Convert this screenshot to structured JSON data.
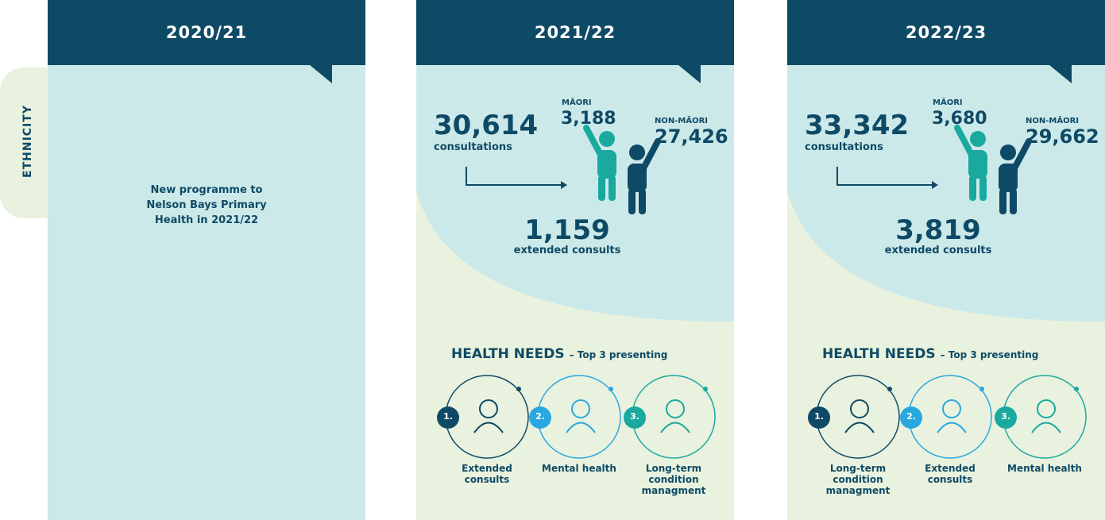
{
  "side_label": "ETHNICITY",
  "columns": [
    {
      "year": "2020/21",
      "note": "New programme to Nelson Bays Primary Health in 2021/22"
    },
    {
      "year": "2021/22",
      "consultations": {
        "value": "30,614",
        "label": "consultations"
      },
      "maori": {
        "label": "MĀORI",
        "value": "3,188"
      },
      "non_maori": {
        "label": "NON-MĀORI",
        "value": "27,426"
      },
      "extended": {
        "value": "1,159",
        "label": "extended consults"
      },
      "health_needs": {
        "title": "HEALTH NEEDS",
        "subtitle": "– Top 3 presenting",
        "items": [
          {
            "rank": "1.",
            "label": "Extended consults"
          },
          {
            "rank": "2.",
            "label": "Mental health"
          },
          {
            "rank": "3.",
            "label": "Long-term condition managment"
          }
        ]
      }
    },
    {
      "year": "2022/23",
      "consultations": {
        "value": "33,342",
        "label": "consultations"
      },
      "maori": {
        "label": "MĀORI",
        "value": "3,680"
      },
      "non_maori": {
        "label": "NON-MĀORI",
        "value": "29,662"
      },
      "extended": {
        "value": "3,819",
        "label": "extended consults"
      },
      "health_needs": {
        "title": "HEALTH NEEDS",
        "subtitle": "– Top 3 presenting",
        "items": [
          {
            "rank": "1.",
            "label": "Long-term condition managment"
          },
          {
            "rank": "2.",
            "label": "Extended consults"
          },
          {
            "rank": "3.",
            "label": "Mental health"
          }
        ]
      }
    }
  ]
}
